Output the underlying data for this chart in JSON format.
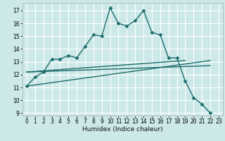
{
  "title": "",
  "xlabel": "Humidex (Indice chaleur)",
  "bg_color": "#cce8e8",
  "grid_color": "#ffffff",
  "line_color": "#1a6b6b",
  "xlim": [
    -0.5,
    23.5
  ],
  "ylim": [
    8.8,
    17.6
  ],
  "yticks": [
    9,
    10,
    11,
    12,
    13,
    14,
    15,
    16,
    17
  ],
  "xticks": [
    0,
    1,
    2,
    3,
    4,
    5,
    6,
    7,
    8,
    9,
    10,
    11,
    12,
    13,
    14,
    15,
    16,
    17,
    18,
    19,
    20,
    21,
    22,
    23
  ],
  "series_main": {
    "x": [
      0,
      1,
      2,
      3,
      4,
      5,
      6,
      7,
      8,
      9,
      10,
      11,
      12,
      13,
      14,
      15,
      16,
      17,
      18,
      19,
      20,
      21,
      22
    ],
    "y": [
      11.1,
      11.8,
      12.2,
      13.2,
      13.2,
      13.5,
      13.3,
      14.2,
      15.1,
      15.0,
      17.2,
      16.0,
      15.8,
      16.2,
      17.0,
      15.3,
      15.1,
      13.3,
      13.3,
      11.5,
      10.2,
      9.7,
      9.0
    ]
  },
  "series_lines": [
    {
      "x": [
        0,
        22
      ],
      "y": [
        11.1,
        13.1
      ]
    },
    {
      "x": [
        0,
        22
      ],
      "y": [
        12.2,
        12.7
      ]
    },
    {
      "x": [
        0,
        19
      ],
      "y": [
        12.2,
        13.1
      ]
    }
  ],
  "marker": "D",
  "markersize": 2.5,
  "linewidth": 1.0,
  "tick_fontsize": 5.5,
  "xlabel_fontsize": 6.5
}
